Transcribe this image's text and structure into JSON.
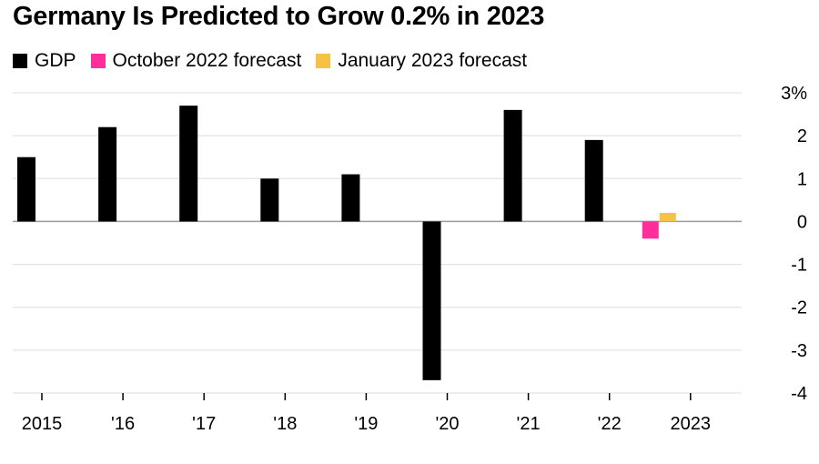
{
  "title": "Germany Is Predicted to Grow 0.2% in 2023",
  "chart_data": {
    "type": "bar",
    "title": "Germany Is Predicted to Grow 0.2% in 2023",
    "categories": [
      "2015",
      "'16",
      "'17",
      "'18",
      "'19",
      "'20",
      "'21",
      "'22",
      "2023"
    ],
    "series": [
      {
        "name": "GDP",
        "color": "#000000",
        "values": [
          1.5,
          2.2,
          2.7,
          1.0,
          1.1,
          -3.7,
          2.6,
          1.9,
          null
        ]
      },
      {
        "name": "October 2022 forecast",
        "color": "#ff2e9a",
        "values": [
          null,
          null,
          null,
          null,
          null,
          null,
          null,
          null,
          -0.4
        ]
      },
      {
        "name": "January 2023 forecast",
        "color": "#f5c242",
        "values": [
          null,
          null,
          null,
          null,
          null,
          null,
          null,
          null,
          0.2
        ]
      }
    ],
    "y_ticks": [
      {
        "value": 3,
        "label": "3%"
      },
      {
        "value": 2,
        "label": "2"
      },
      {
        "value": 1,
        "label": "1"
      },
      {
        "value": 0,
        "label": "0"
      },
      {
        "value": -1,
        "label": "-1"
      },
      {
        "value": -2,
        "label": "-2"
      },
      {
        "value": -3,
        "label": "-3"
      },
      {
        "value": -4,
        "label": "-4"
      }
    ],
    "ylim": [
      -4,
      3
    ],
    "grid": true,
    "legend_position": "top-left",
    "y_axis_side": "right"
  }
}
